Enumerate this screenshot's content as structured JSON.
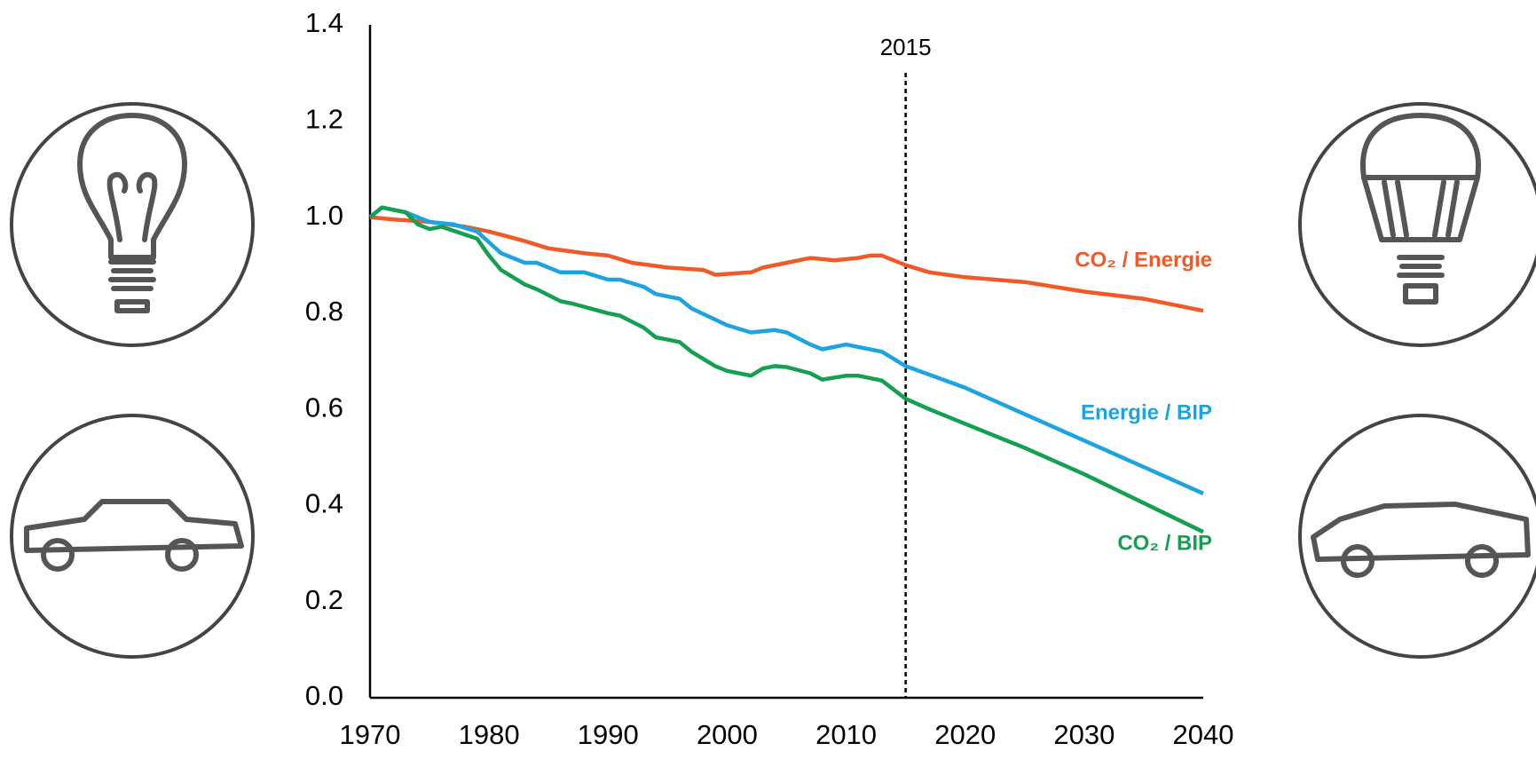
{
  "chart_data": {
    "type": "line",
    "xlim": [
      1970,
      2040
    ],
    "xticks": [
      1970,
      1980,
      1990,
      2000,
      2010,
      2020,
      2030,
      2040
    ],
    "ylim": [
      0,
      1.4
    ],
    "yticks": [
      {
        "value": 0,
        "label": "0.0"
      },
      0.2,
      0.4,
      0.6,
      0.8,
      {
        "value": 1,
        "label": "1.0"
      },
      1.2,
      1.4
    ],
    "grid": false,
    "annotation": {
      "text": "2015",
      "x": 2015
    },
    "series": [
      {
        "name": "CO₂ / Energie",
        "color": "#f05a28",
        "x": [
          1970,
          1972,
          1975,
          1978,
          1980,
          1983,
          1985,
          1988,
          1990,
          1992,
          1995,
          1998,
          1999,
          2002,
          2003,
          2005,
          2007,
          2009,
          2011,
          2012,
          2013,
          2015,
          2017,
          2020,
          2025,
          2030,
          2035,
          2040
        ],
        "values": [
          1.0,
          0.995,
          0.99,
          0.98,
          0.97,
          0.95,
          0.935,
          0.925,
          0.92,
          0.905,
          0.895,
          0.89,
          0.88,
          0.885,
          0.895,
          0.905,
          0.915,
          0.91,
          0.915,
          0.92,
          0.92,
          0.9,
          0.885,
          0.875,
          0.865,
          0.845,
          0.83,
          0.805
        ]
      },
      {
        "name": "Energie / BIP",
        "color": "#1ca3e0",
        "x": [
          1970,
          1971,
          1973,
          1975,
          1977,
          1979,
          1981,
          1983,
          1984,
          1986,
          1988,
          1990,
          1991,
          1993,
          1994,
          1996,
          1997,
          2000,
          2002,
          2004,
          2005,
          2007,
          2008,
          2010,
          2011,
          2013,
          2015,
          2020,
          2025,
          2030,
          2035,
          2040
        ],
        "values": [
          1.0,
          1.02,
          1.01,
          0.99,
          0.985,
          0.97,
          0.925,
          0.905,
          0.905,
          0.885,
          0.885,
          0.87,
          0.87,
          0.855,
          0.84,
          0.83,
          0.81,
          0.775,
          0.76,
          0.765,
          0.76,
          0.735,
          0.725,
          0.735,
          0.73,
          0.72,
          0.69,
          0.645,
          0.59,
          0.535,
          0.48,
          0.425
        ]
      },
      {
        "name": "CO₂ / BIP",
        "color": "#14a050",
        "x": [
          1970,
          1971,
          1973,
          1974,
          1975,
          1976,
          1979,
          1980,
          1981,
          1983,
          1984,
          1986,
          1987,
          1990,
          1991,
          1993,
          1994,
          1995,
          1996,
          1997,
          1999,
          2000,
          2002,
          2003,
          2004,
          2005,
          2007,
          2008,
          2010,
          2011,
          2013,
          2015,
          2017,
          2020,
          2025,
          2030,
          2035,
          2040
        ],
        "values": [
          1.0,
          1.02,
          1.01,
          0.985,
          0.975,
          0.98,
          0.955,
          0.92,
          0.89,
          0.86,
          0.85,
          0.825,
          0.82,
          0.8,
          0.795,
          0.77,
          0.75,
          0.745,
          0.74,
          0.72,
          0.69,
          0.68,
          0.67,
          0.685,
          0.69,
          0.688,
          0.675,
          0.662,
          0.67,
          0.67,
          0.66,
          0.622,
          0.6,
          0.57,
          0.52,
          0.465,
          0.405,
          0.345
        ]
      }
    ]
  }
}
